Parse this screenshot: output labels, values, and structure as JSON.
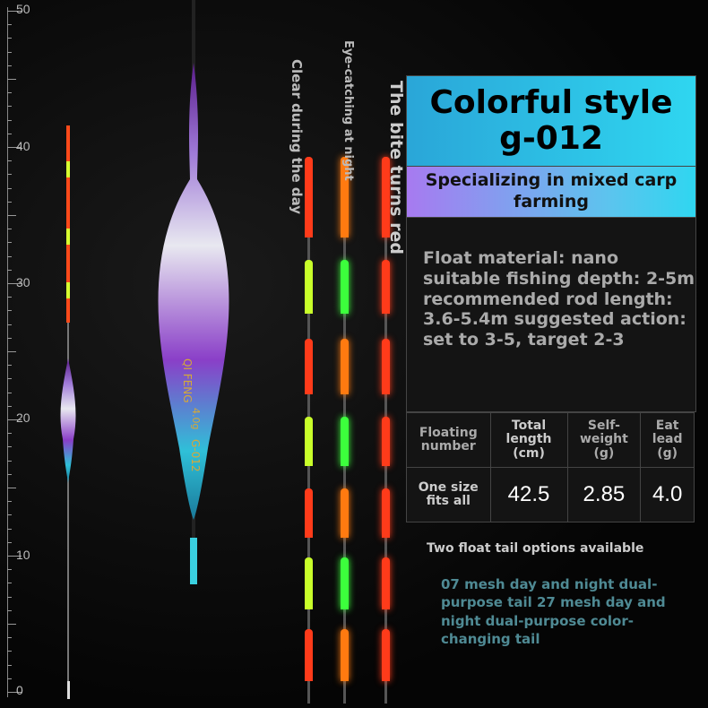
{
  "ruler": {
    "labels": [
      "50",
      "40",
      "30",
      "20",
      "10",
      "0"
    ]
  },
  "side_labels": {
    "day": "Clear during the day",
    "night": "Eye-catching at night",
    "bite": "The bite turns red"
  },
  "header": {
    "title_line1": "Colorful style",
    "title_line2": "g-012",
    "subtitle": "Specializing in mixed carp farming"
  },
  "description": "Float material: nano suitable fishing depth: 2-5m recommended rod length: 3.6-5.4m suggested action: set to 3-5, target 2-3",
  "specs": {
    "headers": [
      "Floating number",
      "Total length (cm)",
      "Self-weight (g)",
      "Eat lead (g)"
    ],
    "row": [
      "One size fits all",
      "42.5",
      "2.85",
      "4.0"
    ]
  },
  "footer": {
    "options_title": "Two float tail options available",
    "options_text": "07 mesh day and night dual-purpose tail 27 mesh day and night dual-purpose color-changing tail"
  },
  "float_marking": {
    "brand": "QI FENG",
    "weight": "4.0g",
    "model": "G-012"
  },
  "colors": {
    "accent_gradient_start": "#9b6cf2",
    "accent_gradient_end": "#2ec6e6",
    "tail_red": "#ff3b1a",
    "tail_orange": "#ff7a10",
    "tail_green": "#3cff3c",
    "tail_yellow": "#c8ff2a"
  }
}
